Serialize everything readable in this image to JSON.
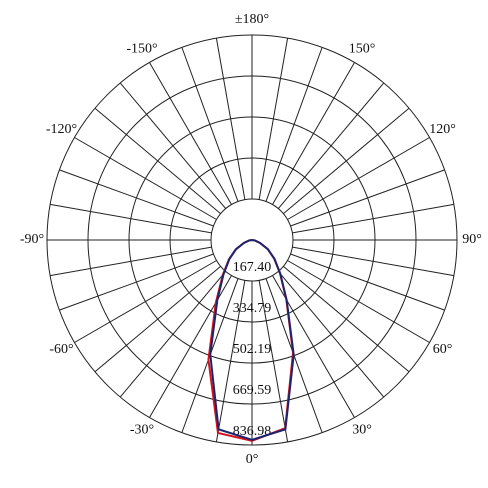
{
  "chart_data": {
    "type": "polar",
    "x": [
      -90,
      -80,
      -70,
      -60,
      -50,
      -40,
      -30,
      -20,
      -10,
      0,
      10,
      20,
      30,
      40,
      50,
      60,
      70,
      80,
      90
    ],
    "series": [
      {
        "color": "#d4121c",
        "values": [
          0,
          12,
          36,
          77,
          123,
          185,
          295,
          520,
          800,
          820,
          780,
          490,
          280,
          178,
          118,
          74,
          34,
          12,
          0
        ]
      },
      {
        "color": "#1c2470",
        "values": [
          0,
          12,
          35,
          75,
          120,
          180,
          283,
          498,
          785,
          816,
          785,
          498,
          283,
          180,
          120,
          75,
          35,
          12,
          0
        ]
      }
    ],
    "rlim": [
      0,
      836.98
    ],
    "rticks": [
      {
        "value": 167.4,
        "label": "167.40"
      },
      334.79,
      502.19,
      669.59,
      836.98
    ],
    "angle_ticks": [
      {
        "value": 180,
        "label": "±180°"
      },
      {
        "value": -150,
        "label": "-150°"
      },
      {
        "value": 150,
        "label": "150°"
      },
      {
        "value": -120,
        "label": "-120°"
      },
      {
        "value": 120,
        "label": "120°"
      },
      {
        "value": -90,
        "label": "-90°"
      },
      {
        "value": 90,
        "label": "90°"
      },
      {
        "value": -60,
        "label": "-60°"
      },
      {
        "value": 60,
        "label": "60°"
      },
      {
        "value": -30,
        "label": "-30°"
      },
      {
        "value": 30,
        "label": "30°"
      },
      {
        "value": 0,
        "label": "0°"
      }
    ],
    "grid": true
  }
}
